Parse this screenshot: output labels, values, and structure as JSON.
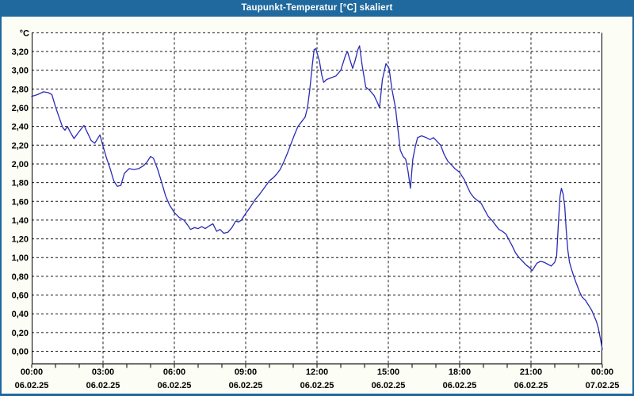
{
  "window": {
    "title": "Taupunkt-Temperatur [°C] skaliert"
  },
  "colors": {
    "titlebar_bg": "#1f699e",
    "titlebar_text": "#ffffff",
    "window_bg": "#fcfdf5",
    "plot_bg": "#ffffff",
    "grid": "#141414",
    "axis": "#000000",
    "series_line": "#2a2ab5"
  },
  "chart_data": {
    "type": "line",
    "title": "Taupunkt-Temperatur [°C] skaliert",
    "ylabel": "°C",
    "grid": "dashed",
    "legend_position": "none",
    "y_axis": {
      "unit_label": "°C",
      "tick_min": 0.0,
      "tick_max": 3.2,
      "tick_step": 0.2,
      "decimal_separator": ",",
      "tick_labels": [
        "0,00",
        "0,20",
        "0,40",
        "0,60",
        "0,80",
        "1,00",
        "1,20",
        "1,40",
        "1,60",
        "1,80",
        "2,00",
        "2,20",
        "2,40",
        "2,60",
        "2,80",
        "3,00",
        "3,20"
      ],
      "plot_top_value": 3.4,
      "plot_bottom_value": -0.14
    },
    "x_axis": {
      "range_hours": [
        0,
        24
      ],
      "minor_tick_interval_hours": 1,
      "major_tick_interval_hours": 3,
      "major_ticks": [
        {
          "hour": 0,
          "time": "00:00",
          "date": "06.02.25"
        },
        {
          "hour": 3,
          "time": "03:00",
          "date": "06.02.25"
        },
        {
          "hour": 6,
          "time": "06:00",
          "date": "06.02.25"
        },
        {
          "hour": 9,
          "time": "09:00",
          "date": "06.02.25"
        },
        {
          "hour": 12,
          "time": "12:00",
          "date": "06.02.25"
        },
        {
          "hour": 15,
          "time": "15:00",
          "date": "06.02.25"
        },
        {
          "hour": 18,
          "time": "18:00",
          "date": "06.02.25"
        },
        {
          "hour": 21,
          "time": "21:00",
          "date": "06.02.25"
        },
        {
          "hour": 24,
          "time": "00:00",
          "date": "07.02.25"
        }
      ]
    },
    "series": [
      {
        "name": "Taupunkt-Temperatur",
        "color": "#2a2ab5",
        "points": [
          [
            0,
            2.72
          ],
          [
            0.25,
            2.74
          ],
          [
            0.5,
            2.77
          ],
          [
            0.7,
            2.76
          ],
          [
            0.85,
            2.74
          ],
          [
            1,
            2.61
          ],
          [
            1.15,
            2.5
          ],
          [
            1.3,
            2.39
          ],
          [
            1.4,
            2.36
          ],
          [
            1.5,
            2.4
          ],
          [
            1.62,
            2.34
          ],
          [
            1.78,
            2.27
          ],
          [
            1.95,
            2.33
          ],
          [
            2.1,
            2.38
          ],
          [
            2.2,
            2.41
          ],
          [
            2.35,
            2.33
          ],
          [
            2.5,
            2.25
          ],
          [
            2.65,
            2.22
          ],
          [
            2.8,
            2.28
          ],
          [
            2.87,
            2.31
          ],
          [
            3,
            2.19
          ],
          [
            3.15,
            2.06
          ],
          [
            3.3,
            1.95
          ],
          [
            3.45,
            1.82
          ],
          [
            3.6,
            1.76
          ],
          [
            3.75,
            1.77
          ],
          [
            3.9,
            1.9
          ],
          [
            4.1,
            1.95
          ],
          [
            4.3,
            1.94
          ],
          [
            4.5,
            1.95
          ],
          [
            4.7,
            1.98
          ],
          [
            4.85,
            2.02
          ],
          [
            5,
            2.08
          ],
          [
            5.12,
            2.06
          ],
          [
            5.3,
            1.94
          ],
          [
            5.47,
            1.8
          ],
          [
            5.63,
            1.66
          ],
          [
            5.8,
            1.56
          ],
          [
            6,
            1.48
          ],
          [
            6.2,
            1.43
          ],
          [
            6.4,
            1.4
          ],
          [
            6.55,
            1.35
          ],
          [
            6.68,
            1.3
          ],
          [
            6.85,
            1.32
          ],
          [
            7,
            1.31
          ],
          [
            7.15,
            1.33
          ],
          [
            7.3,
            1.31
          ],
          [
            7.48,
            1.34
          ],
          [
            7.62,
            1.36
          ],
          [
            7.78,
            1.28
          ],
          [
            7.92,
            1.3
          ],
          [
            8.08,
            1.26
          ],
          [
            8.25,
            1.27
          ],
          [
            8.42,
            1.32
          ],
          [
            8.58,
            1.39
          ],
          [
            8.7,
            1.38
          ],
          [
            8.82,
            1.4
          ],
          [
            9,
            1.47
          ],
          [
            9.2,
            1.54
          ],
          [
            9.4,
            1.62
          ],
          [
            9.6,
            1.68
          ],
          [
            9.8,
            1.75
          ],
          [
            10,
            1.82
          ],
          [
            10.15,
            1.85
          ],
          [
            10.3,
            1.89
          ],
          [
            10.45,
            1.94
          ],
          [
            10.6,
            2.02
          ],
          [
            10.75,
            2.11
          ],
          [
            10.9,
            2.21
          ],
          [
            11.05,
            2.31
          ],
          [
            11.2,
            2.4
          ],
          [
            11.35,
            2.45
          ],
          [
            11.5,
            2.5
          ],
          [
            11.6,
            2.6
          ],
          [
            11.7,
            2.8
          ],
          [
            11.8,
            3.05
          ],
          [
            11.88,
            3.22
          ],
          [
            11.95,
            3.23
          ],
          [
            12.02,
            3.17
          ],
          [
            12.1,
            3.1
          ],
          [
            12.2,
            2.95
          ],
          [
            12.28,
            2.87
          ],
          [
            12.4,
            2.9
          ],
          [
            12.6,
            2.92
          ],
          [
            12.8,
            2.94
          ],
          [
            13,
            3
          ],
          [
            13.1,
            3.08
          ],
          [
            13.2,
            3.16
          ],
          [
            13.28,
            3.2
          ],
          [
            13.4,
            3.1
          ],
          [
            13.5,
            3.02
          ],
          [
            13.6,
            3.1
          ],
          [
            13.72,
            3.22
          ],
          [
            13.79,
            3.26
          ],
          [
            13.9,
            3.05
          ],
          [
            14.05,
            2.82
          ],
          [
            14.2,
            2.79
          ],
          [
            14.4,
            2.73
          ],
          [
            14.55,
            2.65
          ],
          [
            14.63,
            2.6
          ],
          [
            14.75,
            2.9
          ],
          [
            14.9,
            3.07
          ],
          [
            15.03,
            3.02
          ],
          [
            15.15,
            2.8
          ],
          [
            15.3,
            2.6
          ],
          [
            15.4,
            2.38
          ],
          [
            15.5,
            2.15
          ],
          [
            15.62,
            2.08
          ],
          [
            15.73,
            2.05
          ],
          [
            15.83,
            1.92
          ],
          [
            15.93,
            1.74
          ],
          [
            16.03,
            2.05
          ],
          [
            16.13,
            2.18
          ],
          [
            16.23,
            2.28
          ],
          [
            16.4,
            2.3
          ],
          [
            16.6,
            2.28
          ],
          [
            16.75,
            2.26
          ],
          [
            16.9,
            2.28
          ],
          [
            17.05,
            2.24
          ],
          [
            17.2,
            2.2
          ],
          [
            17.35,
            2.1
          ],
          [
            17.5,
            2.03
          ],
          [
            17.65,
            1.99
          ],
          [
            17.8,
            1.95
          ],
          [
            18,
            1.91
          ],
          [
            18.1,
            1.87
          ],
          [
            18.2,
            1.83
          ],
          [
            18.3,
            1.77
          ],
          [
            18.45,
            1.69
          ],
          [
            18.6,
            1.64
          ],
          [
            18.75,
            1.61
          ],
          [
            18.9,
            1.58
          ],
          [
            19.05,
            1.51
          ],
          [
            19.2,
            1.44
          ],
          [
            19.35,
            1.4
          ],
          [
            19.5,
            1.35
          ],
          [
            19.65,
            1.3
          ],
          [
            19.8,
            1.28
          ],
          [
            19.95,
            1.25
          ],
          [
            20.05,
            1.2
          ],
          [
            20.2,
            1.13
          ],
          [
            20.35,
            1.05
          ],
          [
            20.5,
            1
          ],
          [
            20.65,
            0.96
          ],
          [
            20.8,
            0.92
          ],
          [
            20.95,
            0.89
          ],
          [
            21.05,
            0.86
          ],
          [
            21.15,
            0.9
          ],
          [
            21.25,
            0.94
          ],
          [
            21.4,
            0.96
          ],
          [
            21.55,
            0.95
          ],
          [
            21.7,
            0.93
          ],
          [
            21.85,
            0.91
          ],
          [
            22,
            0.95
          ],
          [
            22.08,
            1.02
          ],
          [
            22.15,
            1.35
          ],
          [
            22.22,
            1.65
          ],
          [
            22.28,
            1.74
          ],
          [
            22.35,
            1.68
          ],
          [
            22.42,
            1.55
          ],
          [
            22.48,
            1.3
          ],
          [
            22.55,
            1.08
          ],
          [
            22.62,
            0.95
          ],
          [
            22.7,
            0.88
          ],
          [
            22.8,
            0.8
          ],
          [
            22.9,
            0.73
          ],
          [
            23.05,
            0.63
          ],
          [
            23.15,
            0.58
          ],
          [
            23.3,
            0.54
          ],
          [
            23.45,
            0.48
          ],
          [
            23.55,
            0.44
          ],
          [
            23.65,
            0.38
          ],
          [
            23.75,
            0.32
          ],
          [
            23.83,
            0.25
          ],
          [
            23.9,
            0.16
          ],
          [
            23.96,
            0.08
          ],
          [
            24,
            0.02
          ]
        ]
      }
    ]
  }
}
